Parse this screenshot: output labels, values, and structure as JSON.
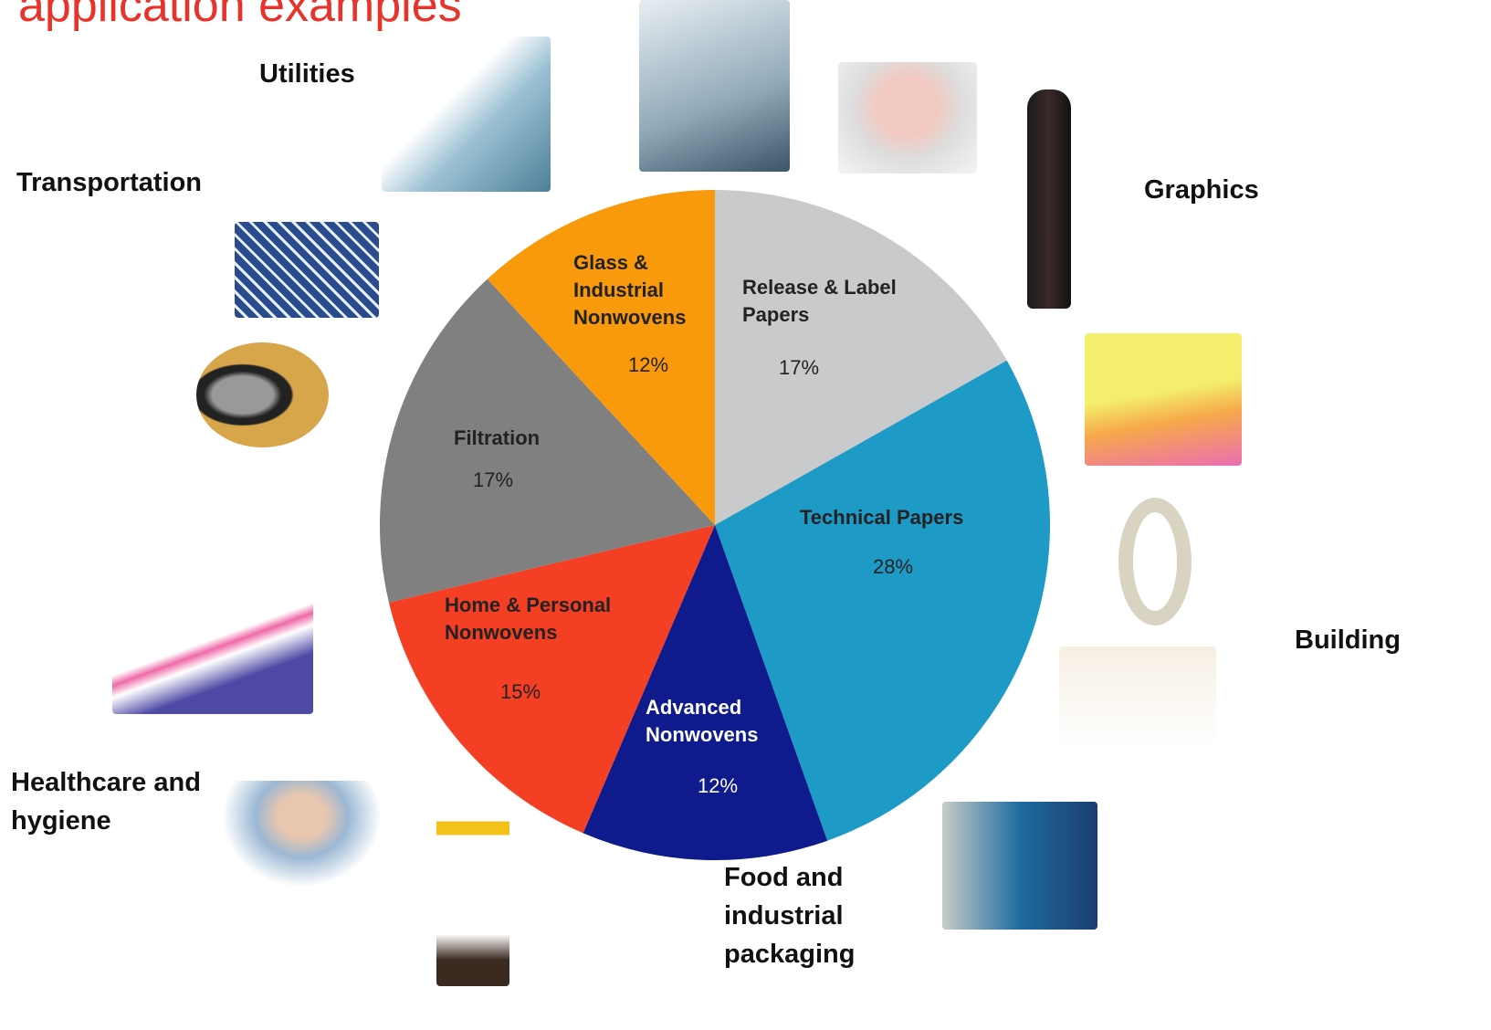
{
  "title": "application examples",
  "chart_data": {
    "type": "pie",
    "categories": [
      "Release & Label Papers",
      "Technical Papers",
      "Advanced Nonwovens",
      "Home & Personal Nonwovens",
      "Filtration",
      "Glass & Industrial Nonwovens"
    ],
    "values": [
      17,
      28,
      12,
      15,
      17,
      12
    ],
    "value_labels": [
      "17%",
      "28%",
      "12%",
      "15%",
      "17%",
      "12%"
    ],
    "colors": [
      "#c9cacc",
      "#1e9ac6",
      "#0f1a8c",
      "#f43f24",
      "#808080",
      "#f89a0c"
    ]
  },
  "annotations": [
    "Utilities",
    "Transportation",
    "Graphics",
    "Building",
    "Healthcare and hygiene",
    "Food and industrial packaging"
  ]
}
